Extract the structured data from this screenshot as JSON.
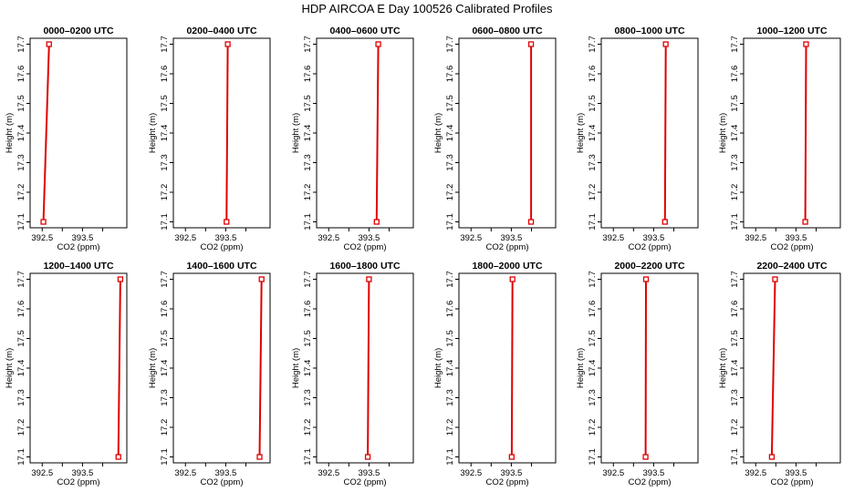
{
  "figure": {
    "title": "HDP AIRCOA E  Day 100526  Calibrated Profiles"
  },
  "chart_data": {
    "type": "line",
    "xlabel": "CO2 (ppm)",
    "ylabel": "Height (m)",
    "xlim": [
      392.2,
      394.6
    ],
    "ylim": [
      17.08,
      17.72
    ],
    "x_ticks": [
      392.5,
      393.5
    ],
    "x_minor_ticks": [
      393.0,
      394.0
    ],
    "y_ticks": [
      17.1,
      17.2,
      17.3,
      17.4,
      17.5,
      17.6,
      17.7
    ],
    "y_tick_labels": [
      "17.1",
      "17.2",
      "17.3",
      "17.4",
      "17.5",
      "17.6",
      "17.7"
    ],
    "line_color": "#e00000",
    "panels": [
      {
        "title": "0000–0200 UTC",
        "points": [
          [
            392.53,
            17.1
          ],
          [
            392.67,
            17.7
          ]
        ]
      },
      {
        "title": "0200–0400 UTC",
        "points": [
          [
            393.52,
            17.1
          ],
          [
            393.55,
            17.7
          ]
        ]
      },
      {
        "title": "0400–0600 UTC",
        "points": [
          [
            393.69,
            17.1
          ],
          [
            393.73,
            17.7
          ]
        ]
      },
      {
        "title": "0600–0800 UTC",
        "points": [
          [
            393.99,
            17.1
          ],
          [
            393.99,
            17.7
          ]
        ]
      },
      {
        "title": "0800–1000 UTC",
        "points": [
          [
            393.78,
            17.1
          ],
          [
            393.8,
            17.7
          ]
        ]
      },
      {
        "title": "1000–1200 UTC",
        "points": [
          [
            393.73,
            17.1
          ],
          [
            393.75,
            17.7
          ]
        ]
      },
      {
        "title": "1200–1400 UTC",
        "points": [
          [
            394.39,
            17.1
          ],
          [
            394.44,
            17.7
          ]
        ]
      },
      {
        "title": "1400–1600 UTC",
        "points": [
          [
            394.34,
            17.1
          ],
          [
            394.39,
            17.7
          ]
        ]
      },
      {
        "title": "1600–1800 UTC",
        "points": [
          [
            393.47,
            17.1
          ],
          [
            393.5,
            17.7
          ]
        ]
      },
      {
        "title": "1800–2000 UTC",
        "points": [
          [
            393.51,
            17.1
          ],
          [
            393.53,
            17.7
          ]
        ]
      },
      {
        "title": "2000–2200 UTC",
        "points": [
          [
            393.3,
            17.1
          ],
          [
            393.31,
            17.7
          ]
        ]
      },
      {
        "title": "2200–2400 UTC",
        "points": [
          [
            392.9,
            17.1
          ],
          [
            392.98,
            17.7
          ]
        ]
      }
    ]
  }
}
